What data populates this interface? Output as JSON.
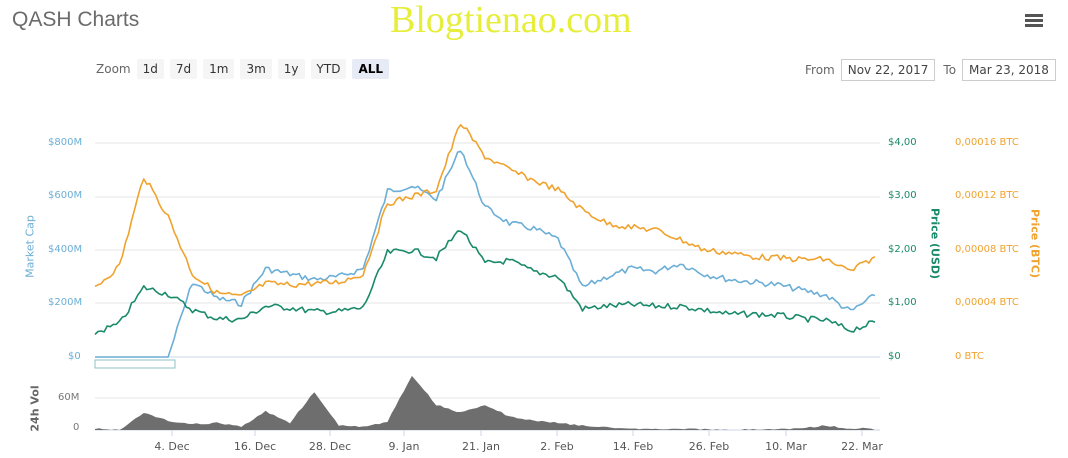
{
  "header": {
    "title": "QASH Charts",
    "watermark": "Blogtienao.com",
    "menu_icon": "hamburger-menu-icon"
  },
  "zoom": {
    "label": "Zoom",
    "buttons": [
      "1d",
      "7d",
      "1m",
      "3m",
      "1y",
      "YTD",
      "ALL"
    ],
    "active": "ALL"
  },
  "range": {
    "from_label": "From",
    "from_value": "Nov 22, 2017",
    "to_label": "To",
    "to_value": "Mar 23, 2018"
  },
  "colors": {
    "market_cap": "#6baed6",
    "price_usd": "#1a8a6a",
    "price_btc": "#f0a22e",
    "volume": "#6e6e6e",
    "grid": "#e6e6e6"
  },
  "axes": {
    "left_title": "Market Cap",
    "left_ticks": [
      "$800M",
      "$600M",
      "$400M",
      "$200M",
      "$0"
    ],
    "usd_title": "Price (USD)",
    "usd_ticks": [
      "$4,00",
      "$3,00",
      "$2,00",
      "$1,00",
      "$0"
    ],
    "btc_title": "Price (BTC)",
    "btc_ticks": [
      "0,00016 BTC",
      "0,00012 BTC",
      "0,00008 BTC",
      "0,00004 BTC",
      "0 BTC"
    ],
    "vol_title": "24h Vol",
    "vol_ticks": [
      "60M",
      "0"
    ],
    "x_ticks": [
      "4. Dec",
      "16. Dec",
      "28. Dec",
      "9. Jan",
      "21. Jan",
      "2. Feb",
      "14. Feb",
      "26. Feb",
      "10. Mar",
      "22. Mar"
    ]
  },
  "chart_data": {
    "type": "line",
    "title": "QASH Charts",
    "x": [
      "Nov 22",
      "Nov 26",
      "Nov 30",
      "Dec 2",
      "Dec 4",
      "Dec 8",
      "Dec 12",
      "Dec 16",
      "Dec 20",
      "Dec 24",
      "Dec 28",
      "Jan 1",
      "Jan 5",
      "Jan 9",
      "Jan 13",
      "Jan 15",
      "Jan 18",
      "Jan 21",
      "Jan 25",
      "Jan 29",
      "Feb 2",
      "Feb 6",
      "Feb 10",
      "Feb 14",
      "Feb 18",
      "Feb 22",
      "Feb 26",
      "Mar 2",
      "Mar 6",
      "Mar 10",
      "Mar 14",
      "Mar 18",
      "Mar 22"
    ],
    "series": [
      {
        "name": "Market Cap",
        "axis": "left",
        "unit": "USD",
        "values": [
          0,
          0,
          0,
          0,
          280000000,
          220000000,
          200000000,
          330000000,
          310000000,
          290000000,
          300000000,
          330000000,
          620000000,
          640000000,
          590000000,
          780000000,
          560000000,
          500000000,
          480000000,
          440000000,
          260000000,
          300000000,
          330000000,
          320000000,
          350000000,
          310000000,
          290000000,
          280000000,
          270000000,
          250000000,
          230000000,
          170000000,
          230000000
        ]
      },
      {
        "name": "Price (USD)",
        "axis": "usd",
        "unit": "USD",
        "values": [
          0.45,
          0.62,
          1.3,
          1.18,
          0.88,
          0.72,
          0.7,
          0.95,
          0.92,
          0.85,
          0.85,
          0.92,
          1.95,
          2.0,
          1.85,
          2.4,
          1.75,
          1.8,
          1.6,
          1.5,
          0.9,
          0.95,
          0.98,
          0.95,
          0.95,
          0.88,
          0.8,
          0.8,
          0.78,
          0.72,
          0.68,
          0.5,
          0.65
        ]
      },
      {
        "name": "Price (BTC)",
        "axis": "btc",
        "unit": "BTC",
        "values": [
          5.2e-05,
          6.8e-05,
          0.000135,
          0.000105,
          6.2e-05,
          4.8e-05,
          4.5e-05,
          5.5e-05,
          5.4e-05,
          5.5e-05,
          5.6e-05,
          6.2e-05,
          0.000115,
          0.00012,
          0.000125,
          0.000175,
          0.00015,
          0.00014,
          0.000132,
          0.000125,
          0.00011,
          0.0001,
          9.7e-05,
          9.5e-05,
          8.8e-05,
          8e-05,
          7.8e-05,
          7.5e-05,
          7.4e-05,
          7.3e-05,
          7.3e-05,
          6.4e-05,
          7.5e-05
        ]
      },
      {
        "name": "24h Vol",
        "axis": "vol",
        "type": "area",
        "unit": "USD",
        "values": [
          3000000,
          1000000,
          28000000,
          15000000,
          10000000,
          12000000,
          6000000,
          30000000,
          12000000,
          60000000,
          8000000,
          6000000,
          14000000,
          85000000,
          40000000,
          28000000,
          40000000,
          22000000,
          16000000,
          12000000,
          8000000,
          6000000,
          3000000,
          3000000,
          3000000,
          2000000,
          1000000,
          2000000,
          3000000,
          4000000,
          8000000,
          3000000,
          4000000
        ]
      }
    ],
    "ylim_left": [
      0,
      800000000
    ],
    "ylim_usd": [
      0,
      4
    ],
    "ylim_btc": [
      0,
      0.00016
    ],
    "ylim_vol": [
      0,
      100000000
    ],
    "grid": true,
    "legend": "none"
  }
}
